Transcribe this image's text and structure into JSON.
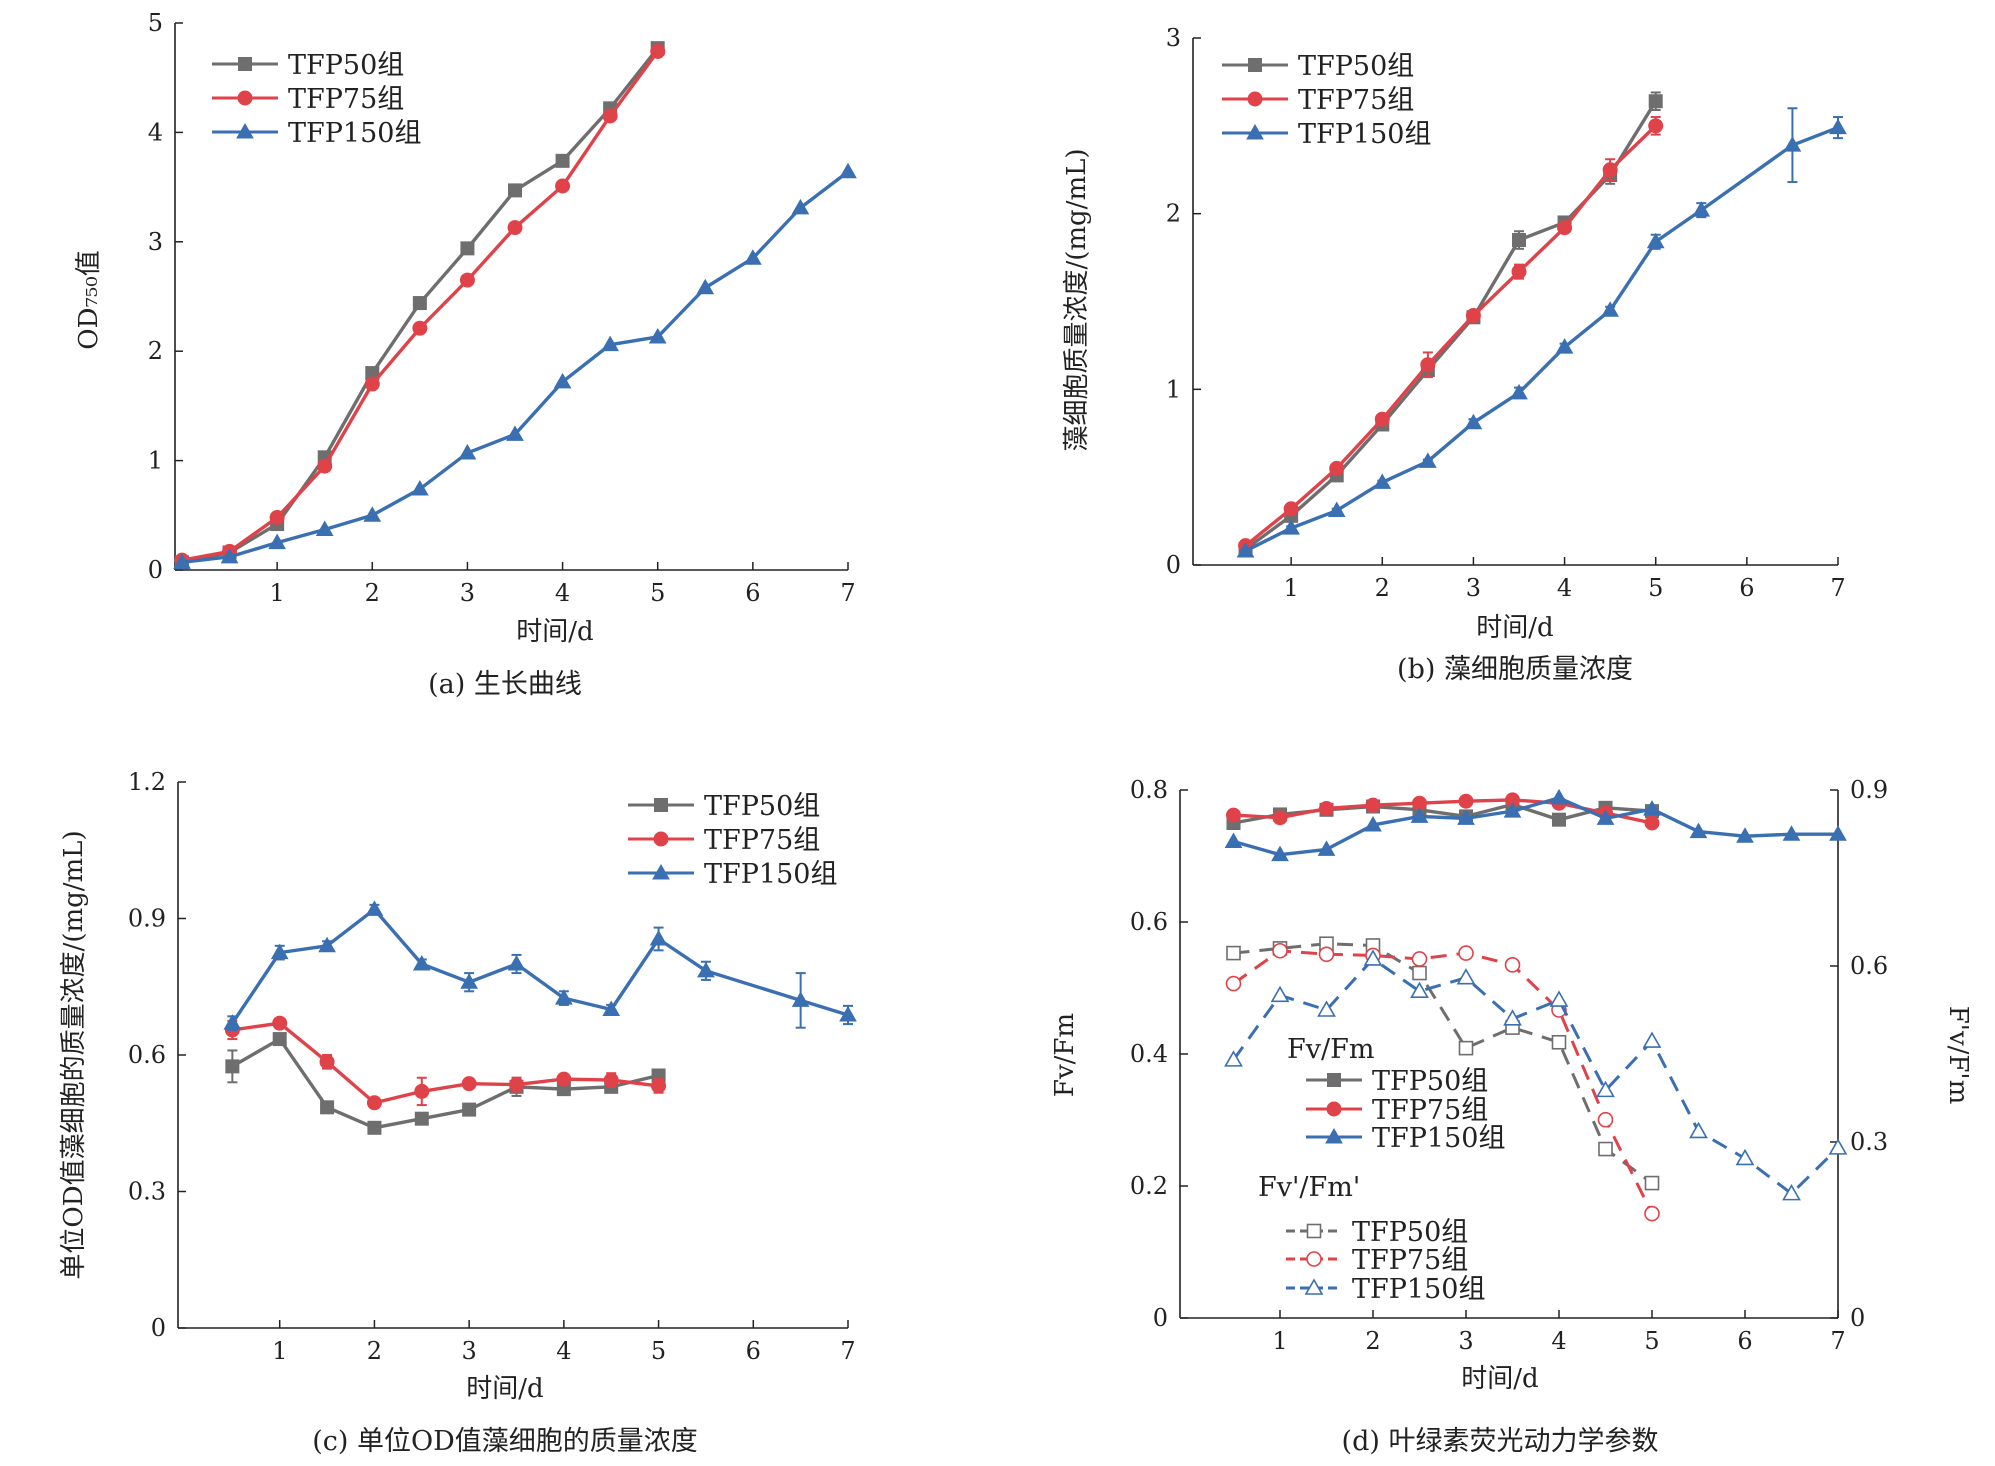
{
  "chart_data": [
    {
      "id": "a",
      "type": "line",
      "caption": "(a) 生长曲线",
      "xlabel": "时间/d",
      "ylabel": "OD₇₅₀值",
      "xlim": [
        0,
        7
      ],
      "ylim": [
        0,
        5
      ],
      "xticks": [
        1,
        2,
        3,
        4,
        5,
        6,
        7
      ],
      "yticks": [
        0,
        1,
        2,
        3,
        4,
        5
      ],
      "legend_position": "top-left",
      "series": [
        {
          "name": "TFP50组",
          "color": "#6e6e6e",
          "marker": "square",
          "dashed": false,
          "x": [
            0,
            0.5,
            1,
            1.5,
            2,
            2.5,
            3,
            3.5,
            4,
            4.5,
            5
          ],
          "y": [
            0.07,
            0.16,
            0.42,
            1.03,
            1.8,
            2.44,
            2.94,
            3.47,
            3.74,
            4.22,
            4.77
          ]
        },
        {
          "name": "TFP75组",
          "color": "#e0424a",
          "marker": "circle",
          "dashed": false,
          "x": [
            0,
            0.5,
            1,
            1.5,
            2,
            2.5,
            3,
            3.5,
            4,
            4.5,
            5
          ],
          "y": [
            0.09,
            0.17,
            0.48,
            0.95,
            1.7,
            2.21,
            2.65,
            3.13,
            3.51,
            4.15,
            4.74
          ]
        },
        {
          "name": "TFP150组",
          "color": "#3a6fb2",
          "marker": "triangle",
          "dashed": false,
          "x": [
            0,
            0.5,
            1,
            1.5,
            2,
            2.5,
            3,
            3.5,
            4,
            4.5,
            5,
            5.5,
            6,
            6.5,
            7
          ],
          "y": [
            0.07,
            0.12,
            0.25,
            0.37,
            0.5,
            0.74,
            1.07,
            1.24,
            1.72,
            2.06,
            2.13,
            2.58,
            2.85,
            3.31,
            3.64
          ]
        }
      ]
    },
    {
      "id": "b",
      "type": "line",
      "caption": "(b) 藻细胞质量浓度",
      "xlabel": "时间/d",
      "ylabel": "藻细胞质量浓度/(mg/mL)",
      "xlim": [
        0,
        7
      ],
      "ylim": [
        0,
        3
      ],
      "xticks": [
        1,
        2,
        3,
        4,
        5,
        6,
        7
      ],
      "yticks": [
        0,
        1,
        2,
        3
      ],
      "legend_position": "top-left",
      "series": [
        {
          "name": "TFP50组",
          "color": "#6e6e6e",
          "marker": "square",
          "dashed": false,
          "x": [
            0.5,
            1,
            1.5,
            2,
            2.5,
            3,
            3.5,
            4,
            4.5,
            5
          ],
          "y": [
            0.09,
            0.28,
            0.51,
            0.8,
            1.11,
            1.41,
            1.85,
            1.95,
            2.22,
            2.64
          ],
          "err": [
            0.01,
            0.02,
            0.02,
            0.03,
            0.04,
            0.02,
            0.05,
            0.02,
            0.05,
            0.05
          ]
        },
        {
          "name": "TFP75组",
          "color": "#e0424a",
          "marker": "circle",
          "dashed": false,
          "x": [
            0.5,
            1,
            1.5,
            2,
            2.5,
            3,
            3.5,
            4,
            4.5,
            5
          ],
          "y": [
            0.11,
            0.32,
            0.55,
            0.83,
            1.14,
            1.42,
            1.67,
            1.92,
            2.25,
            2.5
          ],
          "err": [
            0.01,
            0.02,
            0.02,
            0.02,
            0.07,
            0.02,
            0.04,
            0.02,
            0.06,
            0.05
          ]
        },
        {
          "name": "TFP150组",
          "color": "#3a6fb2",
          "marker": "triangle",
          "dashed": false,
          "x": [
            0.5,
            1,
            1.5,
            2,
            2.5,
            3,
            3.5,
            4,
            4.5,
            5,
            5.5,
            6.5,
            7
          ],
          "y": [
            0.08,
            0.21,
            0.31,
            0.47,
            0.59,
            0.81,
            0.98,
            1.24,
            1.45,
            1.84,
            2.02,
            2.39,
            2.49
          ],
          "err": [
            0.01,
            0.01,
            0.01,
            0.01,
            0.01,
            0.02,
            0.03,
            0.02,
            0.02,
            0.04,
            0.04,
            0.21,
            0.06
          ]
        }
      ]
    },
    {
      "id": "c",
      "type": "line",
      "caption": "(c) 单位OD值藻细胞的质量浓度",
      "xlabel": "时间/d",
      "ylabel": "单位OD值藻细胞的质量浓度/(mg/mL)",
      "xlim": [
        0,
        7
      ],
      "ylim": [
        0,
        1.2
      ],
      "xticks": [
        1,
        2,
        3,
        4,
        5,
        6,
        7
      ],
      "yticks": [
        0,
        0.3,
        0.6,
        0.9,
        1.2
      ],
      "ytick_labels": [
        "0",
        "0.3",
        "0.6",
        "0.9",
        "1.2"
      ],
      "legend_position": "top-right",
      "series": [
        {
          "name": "TFP50组",
          "color": "#6e6e6e",
          "marker": "square",
          "dashed": false,
          "x": [
            0.5,
            1,
            1.5,
            2,
            2.5,
            3,
            3.5,
            4,
            4.5,
            5
          ],
          "y": [
            0.575,
            0.635,
            0.485,
            0.44,
            0.46,
            0.48,
            0.53,
            0.525,
            0.53,
            0.555
          ],
          "err": [
            0.035,
            0.01,
            0.01,
            0.01,
            0.01,
            0.01,
            0.02,
            0.01,
            0.01,
            0.01
          ]
        },
        {
          "name": "TFP75组",
          "color": "#e0424a",
          "marker": "circle",
          "dashed": false,
          "x": [
            0.5,
            1,
            1.5,
            2,
            2.5,
            3,
            3.5,
            4,
            4.5,
            5
          ],
          "y": [
            0.655,
            0.67,
            0.585,
            0.495,
            0.52,
            0.537,
            0.535,
            0.547,
            0.545,
            0.532
          ],
          "err": [
            0.02,
            0.01,
            0.015,
            0.01,
            0.03,
            0.01,
            0.015,
            0.01,
            0.015,
            0.015
          ]
        },
        {
          "name": "TFP150组",
          "color": "#3a6fb2",
          "marker": "triangle",
          "dashed": false,
          "x": [
            0.5,
            1,
            1.5,
            2,
            2.5,
            3,
            3.5,
            4,
            4.5,
            5,
            5.5,
            6.5,
            7
          ],
          "y": [
            0.67,
            0.825,
            0.84,
            0.92,
            0.8,
            0.76,
            0.8,
            0.725,
            0.7,
            0.855,
            0.785,
            0.72,
            0.688
          ],
          "err": [
            0.015,
            0.015,
            0.01,
            0.01,
            0.01,
            0.02,
            0.02,
            0.015,
            0.01,
            0.025,
            0.02,
            0.06,
            0.02
          ]
        }
      ]
    },
    {
      "id": "d",
      "type": "line",
      "caption": "(d) 叶绿素荧光动力学参数",
      "xlabel": "时间/d",
      "ylabel": "Fv/Fm",
      "ylabel_right": "F'v/F'm",
      "xlim": [
        0,
        7
      ],
      "ylim": [
        0,
        0.8
      ],
      "ylim_right": [
        0,
        0.9
      ],
      "xticks": [
        1,
        2,
        3,
        4,
        5,
        6,
        7
      ],
      "yticks": [
        0,
        0.2,
        0.4,
        0.6,
        0.8
      ],
      "ytick_labels": [
        "0",
        "0.2",
        "0.4",
        "0.6",
        "0.8"
      ],
      "yticks_right": [
        0,
        0.3,
        0.6,
        0.9
      ],
      "ytick_labels_right": [
        "0",
        "0.3",
        "0.6",
        "0.9"
      ],
      "legend_position": "center",
      "legend_groups": [
        "Fv/Fm",
        "Fv'/Fm'"
      ],
      "series": [
        {
          "name": "TFP50组",
          "group": 0,
          "axis": "left",
          "color": "#6e6e6e",
          "marker": "square",
          "dashed": false,
          "x": [
            0.5,
            1,
            1.5,
            2,
            2.5,
            3,
            3.5,
            4,
            4.5,
            5
          ],
          "y": [
            0.75,
            0.763,
            0.77,
            0.775,
            0.77,
            0.76,
            0.778,
            0.755,
            0.773,
            0.768
          ]
        },
        {
          "name": "TFP75组",
          "group": 0,
          "axis": "left",
          "color": "#e0424a",
          "marker": "circle",
          "dashed": false,
          "x": [
            0.5,
            1,
            1.5,
            2,
            2.5,
            3,
            3.5,
            4,
            4.5,
            5
          ],
          "y": [
            0.762,
            0.758,
            0.772,
            0.777,
            0.78,
            0.783,
            0.785,
            0.78,
            0.765,
            0.75
          ]
        },
        {
          "name": "TFP150组",
          "group": 0,
          "axis": "left",
          "color": "#3a6fb2",
          "marker": "triangle",
          "dashed": false,
          "x": [
            0.5,
            1,
            1.5,
            2,
            2.5,
            3,
            3.5,
            4,
            4.5,
            5,
            5.5,
            6,
            6.5,
            7
          ],
          "y": [
            0.722,
            0.702,
            0.71,
            0.747,
            0.76,
            0.757,
            0.768,
            0.788,
            0.757,
            0.771,
            0.737,
            0.73,
            0.733,
            0.733
          ]
        },
        {
          "name": "TFP50组",
          "group": 1,
          "axis": "right",
          "color": "#6e6e6e",
          "marker": "square-open",
          "dashed": true,
          "x": [
            0.5,
            1,
            1.5,
            2,
            2.5,
            3,
            3.5,
            4,
            4.5,
            5
          ],
          "y": [
            0.622,
            0.63,
            0.638,
            0.635,
            0.588,
            0.46,
            0.495,
            0.47,
            0.288,
            0.23
          ]
        },
        {
          "name": "TFP75组",
          "group": 1,
          "axis": "right",
          "color": "#e0424a",
          "marker": "circle-open",
          "dashed": true,
          "x": [
            0.5,
            1,
            1.5,
            2,
            2.5,
            3,
            3.5,
            4,
            4.5,
            5
          ],
          "y": [
            0.57,
            0.626,
            0.62,
            0.618,
            0.612,
            0.622,
            0.602,
            0.525,
            0.338,
            0.178
          ]
        },
        {
          "name": "TFP150组",
          "group": 1,
          "axis": "right",
          "color": "#3a6fb2",
          "marker": "triangle-open",
          "dashed": true,
          "x": [
            0.5,
            1,
            1.5,
            2,
            2.5,
            3,
            3.5,
            4,
            4.5,
            5,
            5.5,
            6,
            6.5,
            7
          ],
          "y": [
            0.44,
            0.55,
            0.525,
            0.612,
            0.557,
            0.58,
            0.51,
            0.542,
            0.388,
            0.472,
            0.318,
            0.272,
            0.212,
            0.29
          ]
        }
      ]
    }
  ]
}
